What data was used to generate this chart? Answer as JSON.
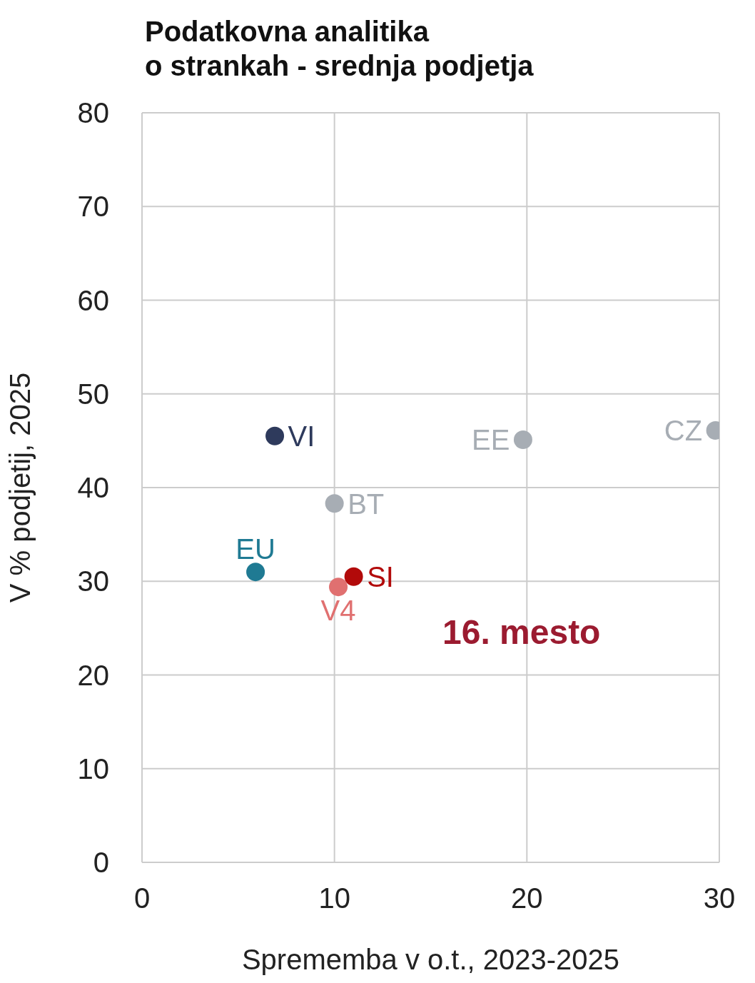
{
  "chart_data": {
    "type": "scatter",
    "title": "Podatkovna analitika\no strankah - srednja podjetja",
    "xlabel": "Sprememba v o.t., 2023-2025",
    "ylabel": "V % podjetij, 2025",
    "xlim": [
      0,
      30
    ],
    "xticks": [
      0,
      10,
      20,
      30
    ],
    "ylim": [
      0,
      80
    ],
    "yticks": [
      0,
      10,
      20,
      30,
      40,
      50,
      60,
      70,
      80
    ],
    "grid": true,
    "marker": "circle",
    "annotations": [
      "16. mesto"
    ],
    "series": [
      {
        "name": "VI",
        "color": "#2e3a5c",
        "x": [
          6.9
        ],
        "values": [
          45.5
        ]
      },
      {
        "name": "EE",
        "color": "#a7adb4",
        "x": [
          19.8
        ],
        "values": [
          45.1
        ]
      },
      {
        "name": "CZ",
        "color": "#a7adb4",
        "x": [
          29.8
        ],
        "values": [
          46.1
        ]
      },
      {
        "name": "BT",
        "color": "#a7adb4",
        "x": [
          10.0
        ],
        "values": [
          38.3
        ]
      },
      {
        "name": "EU",
        "color": "#1f7a93",
        "x": [
          5.9
        ],
        "values": [
          31.0
        ]
      },
      {
        "name": "SI",
        "color": "#b20a0a",
        "x": [
          11.0
        ],
        "values": [
          30.5
        ]
      },
      {
        "name": "V4",
        "color": "#e07070",
        "x": [
          10.2
        ],
        "values": [
          29.4
        ]
      }
    ]
  }
}
